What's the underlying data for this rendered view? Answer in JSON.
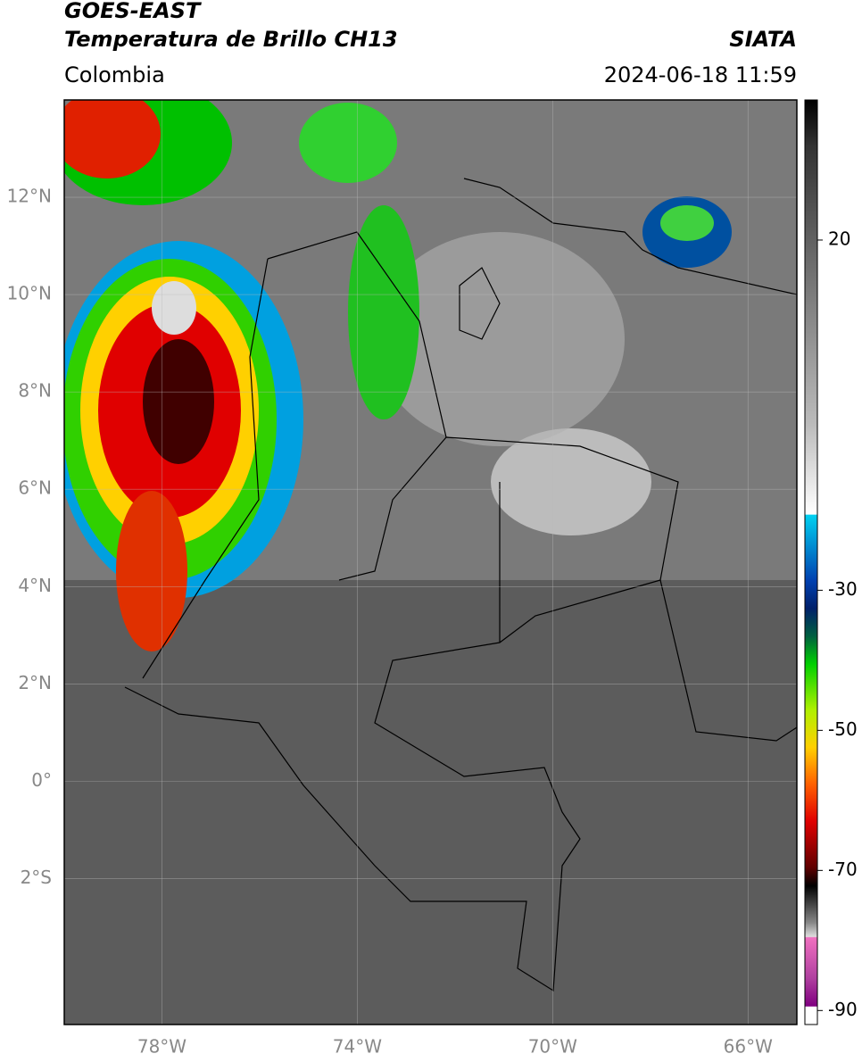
{
  "header": {
    "title": "GOES-EAST",
    "subtitle": "Temperatura de Brillo CH13",
    "source": "SIATA",
    "region": "Colombia",
    "datetime": "2024-06-18 11:59"
  },
  "map": {
    "xlim": [
      -80,
      -65
    ],
    "ylim": [
      -5,
      14
    ],
    "xticks": [
      {
        "value": -78,
        "label": "78°W"
      },
      {
        "value": -74,
        "label": "74°W"
      },
      {
        "value": -70,
        "label": "70°W"
      },
      {
        "value": -66,
        "label": "66°W"
      }
    ],
    "yticks": [
      {
        "value": 12,
        "label": "12°N"
      },
      {
        "value": 10,
        "label": "10°N"
      },
      {
        "value": 8,
        "label": "8°N"
      },
      {
        "value": 6,
        "label": "6°N"
      },
      {
        "value": 4,
        "label": "4°N"
      },
      {
        "value": 2,
        "label": "2°N"
      },
      {
        "value": 0,
        "label": "0°"
      },
      {
        "value": -2,
        "label": "2°S"
      }
    ],
    "grid": true
  },
  "colorbar": {
    "clim": [
      -92,
      40
    ],
    "ticks": [
      20,
      -30,
      -50,
      -70,
      -90
    ]
  }
}
